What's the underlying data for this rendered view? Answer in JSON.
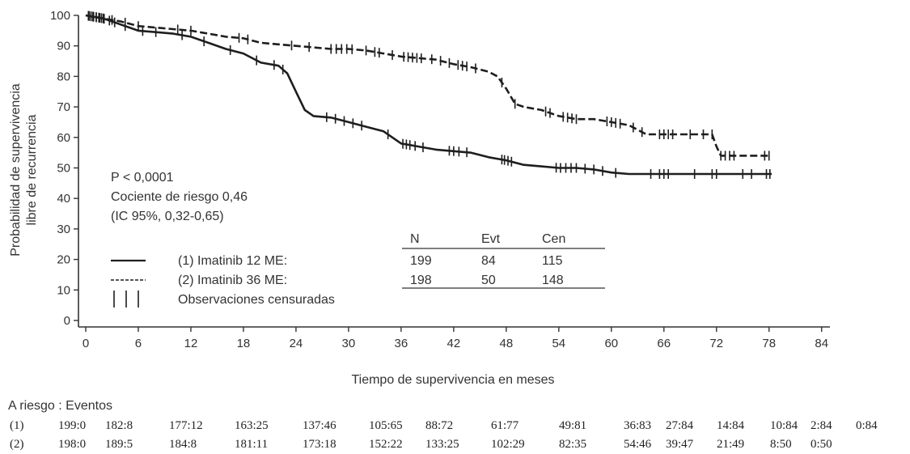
{
  "chart_data": {
    "type": "line",
    "title": "",
    "xlabel": "Tiempo de supervivencia en meses",
    "ylabel": "Probabilidad de supervivencia libre de recurrencia",
    "ylabel_lines": [
      "Probabilidad de supervivencia",
      "libre de recurrencia"
    ],
    "xlim": [
      0,
      84
    ],
    "ylim": [
      0,
      100
    ],
    "xticks": [
      0,
      6,
      12,
      18,
      24,
      30,
      36,
      42,
      48,
      54,
      60,
      66,
      72,
      78,
      84
    ],
    "yticks": [
      0,
      10,
      20,
      30,
      40,
      50,
      60,
      70,
      80,
      90,
      100
    ],
    "grid": false,
    "annotation": [
      "P < 0,0001",
      "Cociente de riesgo 0,46",
      "(IC 95%, 0,32-0,65)"
    ],
    "legend": {
      "items": [
        {
          "style": "solid",
          "label": "(1) Imatinib 12 ME:"
        },
        {
          "style": "dashed",
          "label": "(2) Imatinib 36 ME:"
        },
        {
          "style": "censor",
          "label": "Observaciones censuradas"
        }
      ],
      "table": {
        "headers": [
          "N",
          "Evt",
          "Cen"
        ],
        "rows": [
          [
            "199",
            "84",
            "115"
          ],
          [
            "198",
            "50",
            "148"
          ]
        ]
      }
    },
    "series": [
      {
        "name": "(1) Imatinib 12 ME",
        "style": "solid",
        "x": [
          0,
          2,
          4,
          6,
          8,
          10,
          12,
          14,
          16,
          18,
          20,
          22,
          23,
          24,
          25,
          26,
          28,
          30,
          32,
          34,
          36,
          38,
          40,
          42,
          44,
          46,
          48,
          50,
          52,
          54,
          56,
          58,
          60,
          62,
          66,
          70,
          74,
          78.3
        ],
        "values": [
          100,
          99,
          97,
          95,
          94.5,
          94,
          93,
          91,
          89,
          87.5,
          84.5,
          83.5,
          81,
          75,
          69,
          67,
          66.5,
          65,
          63.5,
          62,
          58,
          57,
          56,
          55.5,
          55,
          53.5,
          52.5,
          51,
          50.5,
          50,
          50,
          49.5,
          48.5,
          48,
          48,
          48,
          48,
          48
        ],
        "censor_x": [
          0.3,
          0.6,
          0.9,
          1.2,
          1.5,
          1.8,
          2.1,
          2.7,
          3.3,
          4.5,
          6.5,
          8,
          11,
          13.5,
          16.5,
          19.5,
          21.5,
          22.5,
          27.5,
          28.5,
          29.5,
          30.5,
          31.5,
          34.5,
          36.2,
          36.6,
          37,
          37.6,
          38.5,
          41.5,
          42,
          42.6,
          43.5,
          47.5,
          47.8,
          48.2,
          48.6,
          53.7,
          54.2,
          54.8,
          55.4,
          56,
          57,
          58,
          59,
          60.5,
          64.5,
          65.5,
          66,
          66.5,
          69.5,
          71.5,
          72,
          75,
          76,
          77.7,
          78.1
        ]
      },
      {
        "name": "(2) Imatinib 36 ME",
        "style": "dashed",
        "x": [
          0,
          2,
          4,
          6,
          8,
          10,
          12,
          14,
          16,
          18,
          20,
          22,
          24,
          26,
          28,
          30,
          32,
          34,
          36,
          38,
          40,
          42,
          44,
          46,
          47,
          48,
          49,
          50,
          52,
          54,
          56,
          58,
          60,
          62,
          64,
          66,
          68,
          70,
          71.5,
          72,
          72.5,
          74,
          76,
          78
        ],
        "values": [
          100,
          99,
          98,
          96.5,
          96,
          95.5,
          95,
          94,
          93,
          92.5,
          91,
          90.5,
          90,
          89.5,
          89,
          89,
          88.5,
          87.5,
          86.5,
          86,
          85.5,
          84,
          83,
          81.5,
          80,
          76,
          71,
          70,
          69,
          67,
          66,
          66,
          65,
          64,
          61,
          61,
          61,
          61,
          61,
          57,
          54,
          54,
          54,
          54
        ],
        "censor_x": [
          0.4,
          0.8,
          1.2,
          1.6,
          2,
          3,
          4.5,
          6,
          10.5,
          12,
          17.5,
          18.5,
          23.5,
          25.5,
          28,
          28.6,
          29.2,
          29.8,
          30.4,
          32,
          33,
          33.5,
          35,
          36.3,
          36.8,
          37.3,
          37.8,
          38.3,
          39.5,
          40.5,
          41.5,
          42.5,
          43,
          43.5,
          44.5,
          47.5,
          49,
          52.5,
          53,
          54.5,
          55,
          55.5,
          56,
          59.5,
          60,
          60.5,
          61,
          62.5,
          63.5,
          65.5,
          66,
          66.5,
          67,
          69,
          70.5,
          71.5,
          72.5,
          73,
          73.5,
          74,
          77.5,
          78
        ]
      }
    ]
  },
  "at_risk": {
    "title": "A riesgo : Eventos",
    "rows": [
      {
        "label": "(1)",
        "values": [
          "199:0",
          "182:8",
          "177:12",
          "163:25",
          "137:46",
          "105:65",
          "88:72",
          "61:77",
          "49:81",
          "36:83",
          "27:84",
          "14:84",
          "10:84",
          "2:84",
          "0:84"
        ]
      },
      {
        "label": "(2)",
        "values": [
          "198:0",
          "189:5",
          "184:8",
          "181:11",
          "173:18",
          "152:22",
          "133:25",
          "102:29",
          "82:35",
          "54:46",
          "39:47",
          "21:49",
          "8:50",
          "0:50"
        ]
      }
    ]
  },
  "colors": {
    "line": "#1e1e1e",
    "axis": "#333333",
    "text": "#333333"
  }
}
